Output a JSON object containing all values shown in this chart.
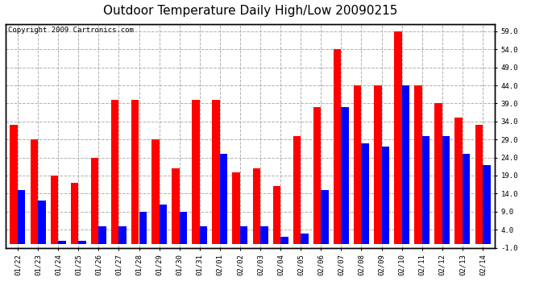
{
  "title": "Outdoor Temperature Daily High/Low 20090215",
  "copyright": "Copyright 2009 Cartronics.com",
  "dates": [
    "01/22",
    "01/23",
    "01/24",
    "01/25",
    "01/26",
    "01/27",
    "01/28",
    "01/29",
    "01/30",
    "01/31",
    "02/01",
    "02/02",
    "02/03",
    "02/04",
    "02/05",
    "02/06",
    "02/07",
    "02/08",
    "02/09",
    "02/10",
    "02/11",
    "02/12",
    "02/13",
    "02/14"
  ],
  "high": [
    33,
    29,
    19,
    17,
    24,
    40,
    40,
    29,
    21,
    40,
    40,
    20,
    21,
    16,
    30,
    38,
    54,
    44,
    44,
    59,
    44,
    39,
    35,
    33
  ],
  "low": [
    15,
    12,
    1,
    1,
    5,
    5,
    9,
    11,
    9,
    5,
    25,
    5,
    5,
    2,
    3,
    15,
    38,
    28,
    27,
    44,
    30,
    30,
    25,
    22
  ],
  "high_color": "#ff0000",
  "low_color": "#0000ff",
  "bg_color": "#ffffff",
  "plot_bg_color": "#ffffff",
  "grid_color": "#b0b0b0",
  "ymin": -1.0,
  "ymax": 61.0,
  "yticks": [
    -1.0,
    4.0,
    9.0,
    14.0,
    19.0,
    24.0,
    29.0,
    34.0,
    39.0,
    44.0,
    49.0,
    54.0,
    59.0
  ],
  "title_fontsize": 11,
  "copyright_fontsize": 6.5,
  "tick_fontsize": 6.5,
  "bar_width": 0.38
}
